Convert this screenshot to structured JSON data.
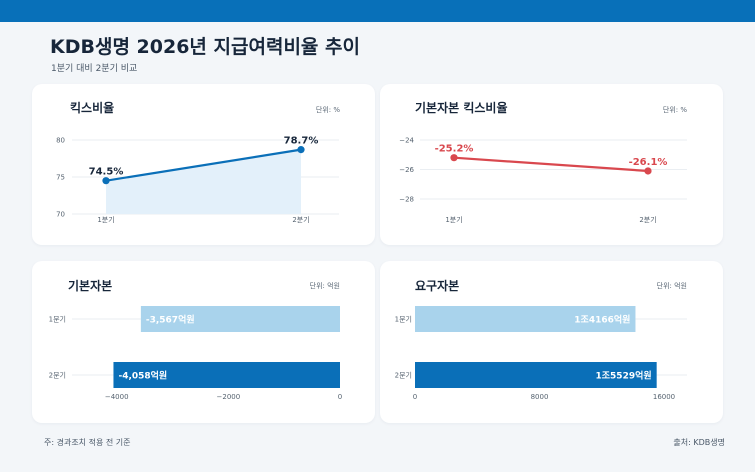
{
  "header": {
    "title": "KDB생명 2026년 지급여력비율 추이",
    "subtitle": "1분기 대비 2분기 비교"
  },
  "footer": {
    "note": "주: 경과조치 적용 전 기준",
    "source": "출처: KDB생명"
  },
  "colors": {
    "topbar": "#0870b9",
    "blue": "#0a6fb8",
    "light_blue": "#a9d3ec",
    "red": "#d9484e",
    "area_fill": "#e3f0fa"
  },
  "chart_data": [
    {
      "type": "area",
      "title": "킥스비율",
      "unit": "단위: %",
      "categories": [
        "1분기",
        "2분기"
      ],
      "values": [
        74.5,
        78.7
      ],
      "data_labels": [
        "74.5%",
        "78.7%"
      ],
      "yticks": [
        70,
        75,
        80
      ],
      "ylim": [
        70,
        80
      ],
      "grid": true,
      "color": "#0a6fb8"
    },
    {
      "type": "line",
      "title": "기본자본 킥스비율",
      "unit": "단위: %",
      "categories": [
        "1분기",
        "2분기"
      ],
      "values": [
        -25.2,
        -26.1
      ],
      "data_labels": [
        "-25.2%",
        "-26.1%"
      ],
      "yticks": [
        -28,
        -26,
        -24
      ],
      "ytick_labels": [
        "−28",
        "−26",
        "−24"
      ],
      "ylim": [
        -28,
        -24
      ],
      "grid": true,
      "color": "#d9484e"
    },
    {
      "type": "bar",
      "orientation": "horizontal",
      "title": "기본자본",
      "unit": "단위: 억원",
      "categories": [
        "1분기",
        "2분기"
      ],
      "values": [
        -3567,
        -4058
      ],
      "data_labels": [
        "-3,567억원",
        "-4,058억원"
      ],
      "xticks": [
        -4000,
        -2000,
        0
      ],
      "xtick_labels": [
        "−4000",
        "−2000",
        "0"
      ],
      "xlim": [
        -4120,
        0
      ],
      "colors": [
        "#a9d3ec",
        "#0a6fb8"
      ]
    },
    {
      "type": "bar",
      "orientation": "horizontal",
      "title": "요구자본",
      "unit": "단위: 억원",
      "categories": [
        "1분기",
        "2분기"
      ],
      "values": [
        14166,
        15529
      ],
      "data_labels": [
        "1조4166억원",
        "1조5529억원"
      ],
      "xticks": [
        0,
        8000,
        16000
      ],
      "xtick_labels": [
        "0",
        "8000",
        "16000"
      ],
      "xlim": [
        0,
        16000
      ],
      "colors": [
        "#a9d3ec",
        "#0a6fb8"
      ]
    }
  ]
}
